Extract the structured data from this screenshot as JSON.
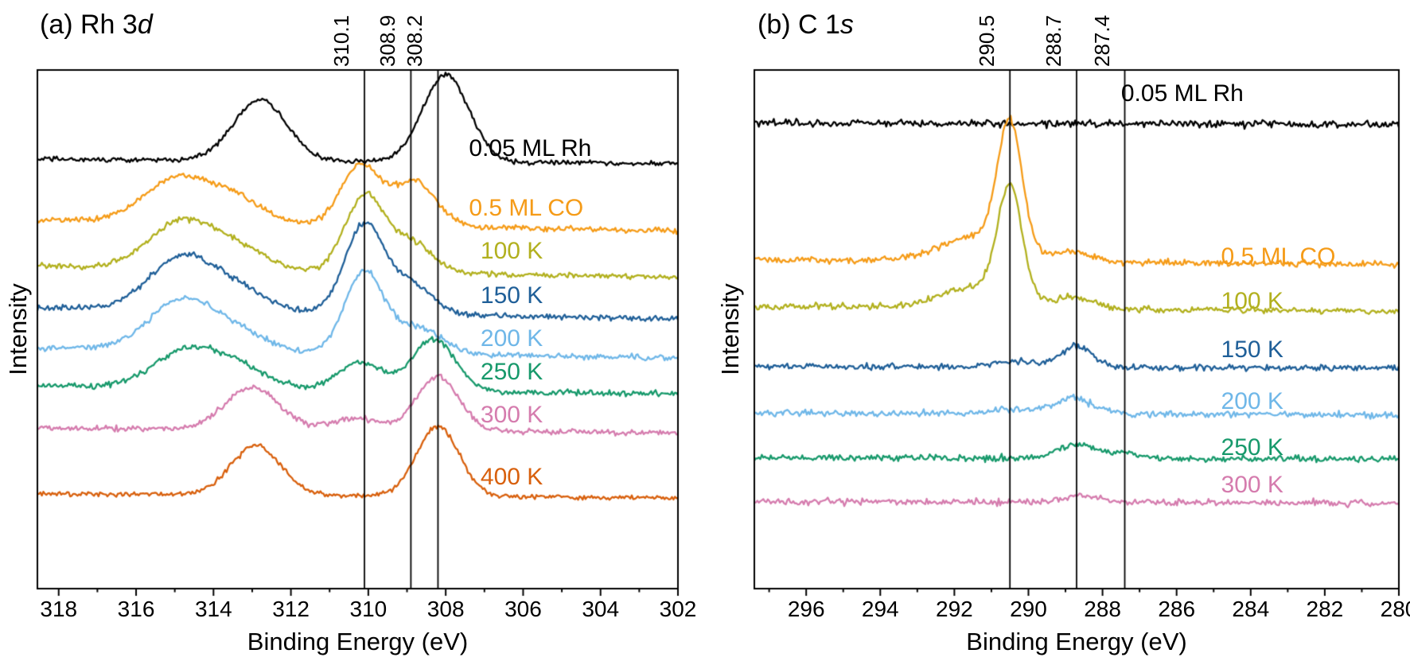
{
  "chart_data": [
    {
      "type": "line",
      "panel": "a",
      "title": "(a) Rh 3d",
      "title_prefix": "(a) Rh 3",
      "title_italic": "d",
      "xlabel": "Binding Energy (eV)",
      "ylabel": "Intensity",
      "x_axis_reversed": true,
      "x_range": [
        318.55,
        302.0
      ],
      "x_ticks": [
        318,
        316,
        314,
        312,
        310,
        308,
        306,
        304,
        302
      ],
      "reference_lines": [
        {
          "value": 310.1,
          "label": "310.1"
        },
        {
          "value": 308.9,
          "label": "308.9"
        },
        {
          "value": 308.2,
          "label": "308.2"
        }
      ],
      "series": [
        {
          "name": "0.05 ML Rh",
          "color": "#000000",
          "baseline": 0.18,
          "noise": 0.007,
          "slope": 0.008,
          "seed": 101,
          "label_x": 307.4,
          "label_y": 0.152,
          "peaks": [
            {
              "center": 308.0,
              "sigma": 0.6,
              "amp": 0.168
            },
            {
              "center": 312.8,
              "sigma": 0.68,
              "amp": 0.117
            }
          ]
        },
        {
          "name": "0.5 ML CO",
          "color": "#F59B17",
          "baseline": 0.31,
          "noise": 0.008,
          "slope": 0.022,
          "seed": 102,
          "label_x": 307.4,
          "label_y": 0.267,
          "peaks": [
            {
              "center": 310.2,
              "sigma": 0.5,
              "amp": 0.115
            },
            {
              "center": 308.8,
              "sigma": 0.55,
              "amp": 0.085
            },
            {
              "center": 314.9,
              "sigma": 0.85,
              "amp": 0.085
            },
            {
              "center": 313.4,
              "sigma": 0.7,
              "amp": 0.04
            }
          ]
        },
        {
          "name": "100 K",
          "color": "#B2B01E",
          "baseline": 0.4,
          "noise": 0.008,
          "slope": 0.022,
          "seed": 103,
          "label_x": 307.1,
          "label_y": 0.35,
          "peaks": [
            {
              "center": 310.1,
              "sigma": 0.5,
              "amp": 0.145
            },
            {
              "center": 308.9,
              "sigma": 0.55,
              "amp": 0.058
            },
            {
              "center": 314.8,
              "sigma": 0.85,
              "amp": 0.092
            },
            {
              "center": 313.3,
              "sigma": 0.7,
              "amp": 0.035
            }
          ]
        },
        {
          "name": "150 K",
          "color": "#1F5F98",
          "baseline": 0.48,
          "noise": 0.008,
          "slope": 0.022,
          "seed": 104,
          "label_x": 307.1,
          "label_y": 0.435,
          "peaks": [
            {
              "center": 310.1,
              "sigma": 0.5,
              "amp": 0.17
            },
            {
              "center": 308.9,
              "sigma": 0.55,
              "amp": 0.058
            },
            {
              "center": 314.8,
              "sigma": 0.85,
              "amp": 0.103
            },
            {
              "center": 313.3,
              "sigma": 0.7,
              "amp": 0.035
            }
          ]
        },
        {
          "name": "200 K",
          "color": "#6FB7E8",
          "baseline": 0.555,
          "noise": 0.008,
          "slope": 0.02,
          "seed": 105,
          "label_x": 307.1,
          "label_y": 0.518,
          "peaks": [
            {
              "center": 310.1,
              "sigma": 0.5,
              "amp": 0.155
            },
            {
              "center": 308.7,
              "sigma": 0.6,
              "amp": 0.05
            },
            {
              "center": 314.8,
              "sigma": 0.85,
              "amp": 0.097
            },
            {
              "center": 313.3,
              "sigma": 0.7,
              "amp": 0.03
            }
          ]
        },
        {
          "name": "250 K",
          "color": "#17996B",
          "baseline": 0.625,
          "noise": 0.008,
          "slope": 0.016,
          "seed": 106,
          "label_x": 307.1,
          "label_y": 0.583,
          "peaks": [
            {
              "center": 308.3,
              "sigma": 0.55,
              "amp": 0.1
            },
            {
              "center": 310.2,
              "sigma": 0.6,
              "amp": 0.052
            },
            {
              "center": 314.6,
              "sigma": 0.9,
              "amp": 0.075
            },
            {
              "center": 313.2,
              "sigma": 0.7,
              "amp": 0.028
            }
          ]
        },
        {
          "name": "300 K",
          "color": "#D57CAE",
          "baseline": 0.7,
          "noise": 0.008,
          "slope": 0.01,
          "seed": 107,
          "label_x": 307.1,
          "label_y": 0.665,
          "peaks": [
            {
              "center": 308.2,
              "sigma": 0.55,
              "amp": 0.105
            },
            {
              "center": 313.0,
              "sigma": 0.7,
              "amp": 0.082
            },
            {
              "center": 310.3,
              "sigma": 0.6,
              "amp": 0.024
            }
          ]
        },
        {
          "name": "400 K",
          "color": "#D8600D",
          "baseline": 0.825,
          "noise": 0.007,
          "slope": 0.008,
          "seed": 108,
          "label_x": 307.1,
          "label_y": 0.785,
          "peaks": [
            {
              "center": 308.2,
              "sigma": 0.55,
              "amp": 0.135
            },
            {
              "center": 312.9,
              "sigma": 0.65,
              "amp": 0.095
            }
          ]
        }
      ]
    },
    {
      "type": "line",
      "panel": "b",
      "title": "(b) C 1s",
      "title_prefix": "(b) C 1",
      "title_italic": "s",
      "xlabel": "Binding Energy (eV)",
      "ylabel": "Intensity",
      "x_axis_reversed": true,
      "x_range": [
        297.4,
        280.0
      ],
      "x_ticks": [
        296,
        294,
        292,
        290,
        288,
        286,
        284,
        282,
        280
      ],
      "reference_lines": [
        {
          "value": 290.5,
          "label": "290.5"
        },
        {
          "value": 288.7,
          "label": "288.7"
        },
        {
          "value": 287.4,
          "label": "287.4"
        }
      ],
      "series": [
        {
          "name": "0.05 ML Rh",
          "color": "#000000",
          "baseline": 0.105,
          "noise": 0.01,
          "slope": 0.003,
          "seed": 201,
          "label_x": 287.5,
          "label_y": 0.046,
          "peaks": []
        },
        {
          "name": "0.5 ML CO",
          "color": "#F59B17",
          "baseline": 0.375,
          "noise": 0.009,
          "slope": 0.01,
          "seed": 202,
          "label_x": 284.8,
          "label_y": 0.36,
          "peaks": [
            {
              "center": 290.5,
              "sigma": 0.33,
              "amp": 0.245
            },
            {
              "center": 291.4,
              "sigma": 0.95,
              "amp": 0.048
            },
            {
              "center": 288.8,
              "sigma": 0.5,
              "amp": 0.018
            }
          ]
        },
        {
          "name": "100 K",
          "color": "#B2B01E",
          "baseline": 0.465,
          "noise": 0.009,
          "slope": 0.01,
          "seed": 203,
          "label_x": 284.8,
          "label_y": 0.447,
          "peaks": [
            {
              "center": 290.5,
              "sigma": 0.33,
              "amp": 0.215
            },
            {
              "center": 291.4,
              "sigma": 0.95,
              "amp": 0.04
            },
            {
              "center": 288.8,
              "sigma": 0.5,
              "amp": 0.022
            }
          ]
        },
        {
          "name": "150 K",
          "color": "#1F5F98",
          "baseline": 0.575,
          "noise": 0.009,
          "slope": 0.004,
          "seed": 204,
          "label_x": 284.8,
          "label_y": 0.54,
          "peaks": [
            {
              "center": 288.7,
              "sigma": 0.45,
              "amp": 0.04
            },
            {
              "center": 290.4,
              "sigma": 0.5,
              "amp": 0.012
            }
          ]
        },
        {
          "name": "200 K",
          "color": "#6FB7E8",
          "baseline": 0.665,
          "noise": 0.009,
          "slope": 0.004,
          "seed": 205,
          "label_x": 284.8,
          "label_y": 0.64,
          "peaks": [
            {
              "center": 288.8,
              "sigma": 0.55,
              "amp": 0.03
            },
            {
              "center": 290.5,
              "sigma": 0.5,
              "amp": 0.008
            }
          ]
        },
        {
          "name": "250 K",
          "color": "#17996B",
          "baseline": 0.75,
          "noise": 0.009,
          "slope": 0.003,
          "seed": 206,
          "label_x": 284.8,
          "label_y": 0.728,
          "peaks": [
            {
              "center": 288.7,
              "sigma": 0.45,
              "amp": 0.028
            },
            {
              "center": 287.5,
              "sigma": 0.4,
              "amp": 0.012
            }
          ]
        },
        {
          "name": "300 K",
          "color": "#D57CAE",
          "baseline": 0.835,
          "noise": 0.009,
          "slope": 0.003,
          "seed": 207,
          "label_x": 284.8,
          "label_y": 0.8,
          "peaks": [
            {
              "center": 288.6,
              "sigma": 0.5,
              "amp": 0.012
            }
          ]
        }
      ]
    }
  ]
}
